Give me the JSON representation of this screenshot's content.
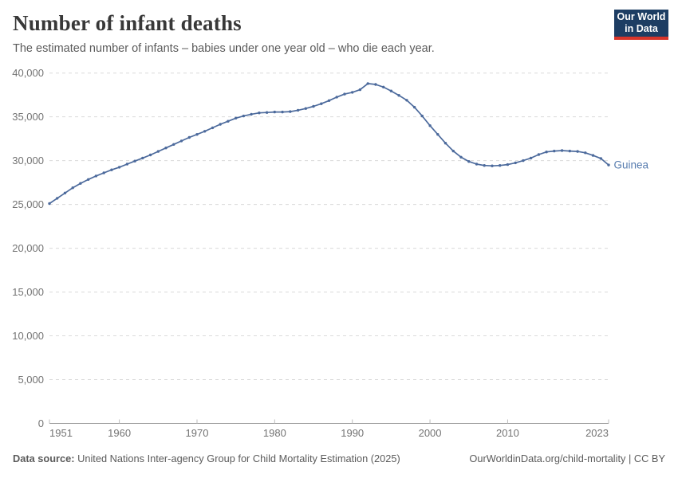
{
  "header": {
    "title": "Number of infant deaths",
    "subtitle": "The estimated number of infants – babies under one year old – who die each year.",
    "logo": {
      "line1": "Our World",
      "line2": "in Data",
      "bg_color": "#1d3d63",
      "accent_color": "#d8352a"
    }
  },
  "chart_data": {
    "type": "line",
    "title": "Number of infant deaths",
    "xlabel": "",
    "ylabel": "",
    "xlim": [
      1951,
      2023
    ],
    "ylim": [
      0,
      40000
    ],
    "grid": "horizontal-dashed",
    "legend_position": "end-of-line",
    "x_ticks": [
      1951,
      1960,
      1970,
      1980,
      1990,
      2000,
      2010,
      2023
    ],
    "y_ticks": [
      0,
      5000,
      10000,
      15000,
      20000,
      25000,
      30000,
      35000,
      40000
    ],
    "series": [
      {
        "name": "Guinea",
        "color": "#4c6a9c",
        "label_color": "#577caf",
        "x": [
          1951,
          1952,
          1953,
          1954,
          1955,
          1956,
          1957,
          1958,
          1959,
          1960,
          1961,
          1962,
          1963,
          1964,
          1965,
          1966,
          1967,
          1968,
          1969,
          1970,
          1971,
          1972,
          1973,
          1974,
          1975,
          1976,
          1977,
          1978,
          1979,
          1980,
          1981,
          1982,
          1983,
          1984,
          1985,
          1986,
          1987,
          1988,
          1989,
          1990,
          1991,
          1992,
          1993,
          1994,
          1995,
          1996,
          1997,
          1998,
          1999,
          2000,
          2001,
          2002,
          2003,
          2004,
          2005,
          2006,
          2007,
          2008,
          2009,
          2010,
          2011,
          2012,
          2013,
          2014,
          2015,
          2016,
          2017,
          2018,
          2019,
          2020,
          2021,
          2022,
          2023
        ],
        "values": [
          25100,
          25700,
          26300,
          26900,
          27400,
          27850,
          28250,
          28600,
          28950,
          29250,
          29600,
          29950,
          30300,
          30650,
          31050,
          31450,
          31850,
          32250,
          32650,
          33000,
          33350,
          33750,
          34150,
          34500,
          34850,
          35100,
          35300,
          35450,
          35500,
          35550,
          35550,
          35600,
          35750,
          35950,
          36200,
          36500,
          36850,
          37250,
          37600,
          37800,
          38100,
          38800,
          38700,
          38400,
          37950,
          37450,
          36900,
          36100,
          35100,
          34000,
          33000,
          32000,
          31100,
          30400,
          29900,
          29600,
          29450,
          29400,
          29450,
          29550,
          29750,
          30000,
          30300,
          30700,
          31000,
          31100,
          31150,
          31100,
          31050,
          30900,
          30600,
          30250,
          29500
        ]
      }
    ]
  },
  "footer": {
    "source_label": "Data source:",
    "source_text": " United Nations Inter-agency Group for Child Mortality Estimation (2025)",
    "link_text": "OurWorldinData.org/child-mortality | CC BY"
  }
}
